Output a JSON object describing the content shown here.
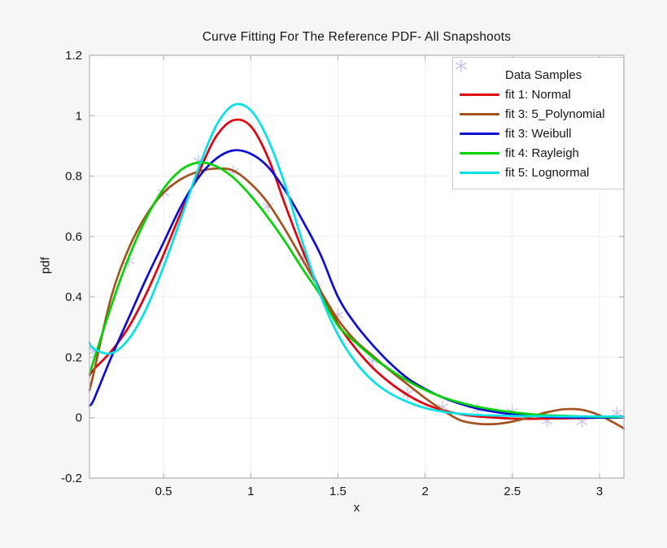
{
  "title": "Curve Fitting For The Reference PDF- All Snapshoots",
  "colors": {
    "figure_background": "#f6f6f7",
    "plot_background": "#ffffff",
    "grid": "#ececef",
    "axis_box": "#b3b3b8",
    "text": "#161616"
  },
  "chart_data": {
    "type": "line",
    "title": "Curve Fitting For The Reference PDF- All Snapshoots",
    "xlabel": "x",
    "ylabel": "pdf",
    "xlim": [
      0.075,
      3.14
    ],
    "ylim": [
      -0.2,
      1.2
    ],
    "grid": true,
    "legend_position": "top-right",
    "x_ticks": [
      0.5,
      1,
      1.5,
      2,
      2.5,
      3
    ],
    "x_tick_labels": [
      "0.5",
      "1",
      "1.5",
      "2",
      "2.5",
      "3"
    ],
    "y_ticks": [
      -0.2,
      0,
      0.2,
      0.4,
      0.6,
      0.8,
      1,
      1.2
    ],
    "y_tick_labels": [
      "-0.2",
      "0",
      "0.2",
      "0.4",
      "0.6",
      "0.8",
      "1",
      "1.2"
    ],
    "samples": {
      "name": "Data Samples",
      "marker": "asterisk",
      "color": "#c7c0e6",
      "points": [
        [
          0.1,
          0.22
        ],
        [
          0.3,
          0.52
        ],
        [
          0.5,
          0.745
        ],
        [
          0.7,
          0.85
        ],
        [
          0.9,
          0.815
        ],
        [
          1.1,
          0.7
        ],
        [
          1.3,
          0.53
        ],
        [
          1.5,
          0.34
        ],
        [
          1.7,
          0.19
        ],
        [
          1.9,
          0.08
        ],
        [
          2.1,
          0.035
        ],
        [
          2.3,
          0.027
        ],
        [
          2.5,
          0.02
        ],
        [
          2.7,
          -0.011
        ],
        [
          2.9,
          -0.013
        ],
        [
          3.1,
          0.016
        ]
      ]
    },
    "x_grid": [
      0.075,
      0.1,
      0.2,
      0.3,
      0.4,
      0.5,
      0.6,
      0.7,
      0.8,
      0.9,
      1.0,
      1.1,
      1.2,
      1.3,
      1.4,
      1.5,
      1.6,
      1.7,
      1.8,
      1.9,
      2.0,
      2.1,
      2.2,
      2.3,
      2.4,
      2.5,
      2.6,
      2.7,
      2.8,
      2.9,
      3.0,
      3.1,
      3.14
    ],
    "series": [
      {
        "name": "fit 1: Normal",
        "slug": "fit-1-normal",
        "color": "#e1000f",
        "y": [
          0.14,
          0.16,
          0.22,
          0.3,
          0.41,
          0.54,
          0.68,
          0.81,
          0.93,
          0.985,
          0.965,
          0.86,
          0.7,
          0.55,
          0.42,
          0.31,
          0.23,
          0.165,
          0.115,
          0.075,
          0.045,
          0.025,
          0.012,
          0.004,
          0.0,
          -0.003,
          -0.004,
          -0.003,
          -0.002,
          -0.001,
          0.0,
          0.0,
          0.0
        ]
      },
      {
        "name": "fit 3: 5_Polynomial",
        "slug": "fit-3-5-polynomial",
        "color": "#a5521f",
        "y": [
          0.09,
          0.15,
          0.4,
          0.56,
          0.67,
          0.745,
          0.79,
          0.815,
          0.825,
          0.818,
          0.775,
          0.71,
          0.62,
          0.52,
          0.42,
          0.325,
          0.255,
          0.205,
          0.155,
          0.11,
          0.065,
          0.025,
          -0.008,
          -0.02,
          -0.021,
          -0.013,
          0.002,
          0.018,
          0.028,
          0.026,
          0.008,
          -0.022,
          -0.036
        ]
      },
      {
        "name": "fit 3: Weibull",
        "slug": "fit-3-weibull",
        "color": "#0d0dd4",
        "y": [
          0.04,
          0.06,
          0.2,
          0.33,
          0.46,
          0.58,
          0.7,
          0.795,
          0.857,
          0.885,
          0.874,
          0.83,
          0.75,
          0.65,
          0.54,
          0.4,
          0.31,
          0.24,
          0.18,
          0.13,
          0.095,
          0.067,
          0.046,
          0.03,
          0.019,
          0.011,
          0.006,
          0.003,
          0.001,
          0.0,
          0.0,
          0.0,
          0.0
        ]
      },
      {
        "name": "fit 4: Rayleigh",
        "slug": "fit-4-rayleigh",
        "color": "#00d400",
        "y": [
          0.145,
          0.19,
          0.37,
          0.53,
          0.66,
          0.758,
          0.82,
          0.845,
          0.833,
          0.795,
          0.735,
          0.662,
          0.58,
          0.49,
          0.405,
          0.305,
          0.25,
          0.2,
          0.158,
          0.122,
          0.092,
          0.068,
          0.05,
          0.036,
          0.026,
          0.018,
          0.012,
          0.008,
          0.006,
          0.004,
          0.003,
          0.002,
          0.002
        ]
      },
      {
        "name": "fit 5: Lognormal",
        "slug": "fit-5-lognormal",
        "color": "#00e2e8",
        "y": [
          0.248,
          0.228,
          0.213,
          0.26,
          0.36,
          0.5,
          0.66,
          0.825,
          0.965,
          1.035,
          1.018,
          0.92,
          0.765,
          0.575,
          0.405,
          0.275,
          0.185,
          0.122,
          0.08,
          0.052,
          0.032,
          0.02,
          0.013,
          0.009,
          0.007,
          0.006,
          0.005,
          0.005,
          0.004,
          0.004,
          0.004,
          0.004,
          0.004
        ]
      }
    ]
  }
}
